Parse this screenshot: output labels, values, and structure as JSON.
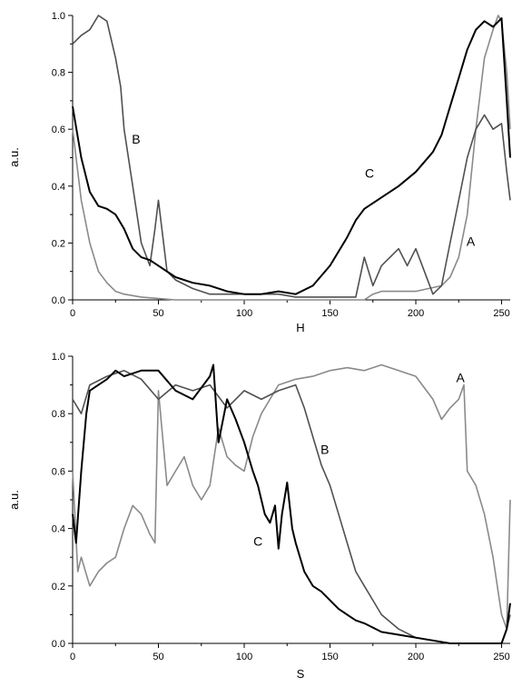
{
  "colors": {
    "A": "#8a8a8a",
    "B": "#505050",
    "C": "#000000",
    "axis": "#000000"
  },
  "chart_data": [
    {
      "type": "line",
      "xlabel": "H",
      "ylabel": "a.u.",
      "xlim": [
        0,
        255
      ],
      "ylim": [
        0,
        1.0
      ],
      "xticks": [
        0,
        50,
        100,
        150,
        200,
        250
      ],
      "yticks": [
        0.0,
        0.2,
        0.4,
        0.6,
        0.8,
        1.0
      ],
      "xtick_labels": [
        "0",
        "50",
        "100",
        "150",
        "200",
        "250"
      ],
      "ytick_labels": [
        "0.0",
        "0.2",
        "0.4",
        "0.6",
        "0.8",
        "1.0"
      ],
      "series": [
        {
          "name": "A",
          "x": [
            0,
            5,
            10,
            15,
            20,
            25,
            30,
            40,
            60,
            80,
            100,
            120,
            150,
            170,
            175,
            180,
            200,
            215,
            220,
            225,
            230,
            235,
            240,
            245,
            248,
            250,
            253,
            255
          ],
          "y": [
            0.6,
            0.35,
            0.2,
            0.1,
            0.06,
            0.03,
            0.02,
            0.01,
            0.0,
            0.0,
            0.0,
            0.0,
            0.0,
            0.0,
            0.02,
            0.03,
            0.03,
            0.05,
            0.08,
            0.15,
            0.3,
            0.6,
            0.85,
            0.95,
            1.0,
            0.98,
            0.8,
            0.6
          ]
        },
        {
          "name": "B",
          "x": [
            0,
            5,
            10,
            15,
            20,
            25,
            28,
            30,
            35,
            40,
            45,
            48,
            50,
            52,
            55,
            60,
            70,
            80,
            100,
            120,
            130,
            150,
            165,
            170,
            175,
            180,
            185,
            190,
            195,
            200,
            205,
            210,
            215,
            220,
            225,
            230,
            235,
            240,
            245,
            250,
            253,
            255
          ],
          "y": [
            0.9,
            0.93,
            0.95,
            1.0,
            0.98,
            0.85,
            0.75,
            0.6,
            0.4,
            0.2,
            0.12,
            0.25,
            0.35,
            0.25,
            0.1,
            0.07,
            0.04,
            0.02,
            0.02,
            0.02,
            0.01,
            0.01,
            0.01,
            0.15,
            0.05,
            0.12,
            0.15,
            0.18,
            0.12,
            0.18,
            0.1,
            0.02,
            0.05,
            0.2,
            0.35,
            0.5,
            0.6,
            0.65,
            0.6,
            0.62,
            0.45,
            0.35
          ]
        },
        {
          "name": "C",
          "x": [
            0,
            5,
            10,
            15,
            20,
            25,
            30,
            35,
            40,
            45,
            50,
            60,
            70,
            80,
            90,
            100,
            110,
            120,
            130,
            140,
            150,
            160,
            165,
            170,
            180,
            190,
            200,
            210,
            215,
            220,
            225,
            230,
            235,
            240,
            245,
            250,
            253,
            255
          ],
          "y": [
            0.68,
            0.5,
            0.38,
            0.33,
            0.32,
            0.3,
            0.25,
            0.18,
            0.15,
            0.14,
            0.12,
            0.08,
            0.06,
            0.05,
            0.03,
            0.02,
            0.02,
            0.03,
            0.02,
            0.05,
            0.12,
            0.22,
            0.28,
            0.32,
            0.36,
            0.4,
            0.45,
            0.52,
            0.58,
            0.68,
            0.78,
            0.88,
            0.95,
            0.98,
            0.96,
            0.99,
            0.7,
            0.5
          ]
        }
      ],
      "annotations": [
        {
          "text": "B",
          "x": 37,
          "y": 0.55
        },
        {
          "text": "C",
          "x": 173,
          "y": 0.43
        },
        {
          "text": "A",
          "x": 232,
          "y": 0.19
        }
      ]
    },
    {
      "type": "line",
      "xlabel": "S",
      "ylabel": "a.u.",
      "xlim": [
        0,
        255
      ],
      "ylim": [
        0,
        1.0
      ],
      "xticks": [
        0,
        50,
        100,
        150,
        200,
        250
      ],
      "yticks": [
        0.0,
        0.2,
        0.4,
        0.6,
        0.8,
        1.0
      ],
      "xtick_labels": [
        "0",
        "50",
        "100",
        "150",
        "200",
        "250"
      ],
      "ytick_labels": [
        "0.0",
        "0.2",
        "0.4",
        "0.6",
        "0.8",
        "1.0"
      ],
      "series": [
        {
          "name": "A",
          "x": [
            0,
            3,
            5,
            10,
            15,
            20,
            25,
            30,
            35,
            40,
            45,
            48,
            50,
            55,
            60,
            65,
            70,
            75,
            80,
            85,
            90,
            95,
            100,
            105,
            110,
            120,
            130,
            140,
            150,
            160,
            170,
            180,
            190,
            200,
            210,
            215,
            220,
            225,
            228,
            230,
            235,
            240,
            245,
            250,
            253,
            255
          ],
          "y": [
            0.6,
            0.25,
            0.3,
            0.2,
            0.25,
            0.28,
            0.3,
            0.4,
            0.48,
            0.45,
            0.38,
            0.35,
            0.88,
            0.55,
            0.6,
            0.65,
            0.55,
            0.5,
            0.55,
            0.75,
            0.65,
            0.62,
            0.6,
            0.72,
            0.8,
            0.9,
            0.92,
            0.93,
            0.95,
            0.96,
            0.95,
            0.97,
            0.95,
            0.93,
            0.85,
            0.78,
            0.82,
            0.85,
            0.9,
            0.6,
            0.55,
            0.45,
            0.3,
            0.1,
            0.05,
            0.5
          ]
        },
        {
          "name": "B",
          "x": [
            0,
            5,
            10,
            20,
            30,
            40,
            50,
            60,
            70,
            80,
            90,
            100,
            110,
            120,
            130,
            135,
            140,
            145,
            150,
            155,
            160,
            165,
            170,
            175,
            180,
            190,
            200,
            210,
            220,
            230,
            240,
            250,
            253,
            255
          ],
          "y": [
            0.85,
            0.8,
            0.9,
            0.93,
            0.95,
            0.92,
            0.85,
            0.9,
            0.88,
            0.9,
            0.82,
            0.88,
            0.85,
            0.88,
            0.9,
            0.82,
            0.72,
            0.62,
            0.55,
            0.45,
            0.35,
            0.25,
            0.2,
            0.15,
            0.1,
            0.05,
            0.02,
            0.01,
            0.0,
            0.0,
            0.0,
            0.0,
            0.05,
            0.1
          ]
        },
        {
          "name": "C",
          "x": [
            0,
            2,
            5,
            8,
            10,
            15,
            20,
            25,
            30,
            40,
            50,
            60,
            70,
            80,
            82,
            85,
            90,
            95,
            100,
            105,
            108,
            110,
            112,
            115,
            118,
            120,
            122,
            125,
            128,
            130,
            135,
            140,
            145,
            150,
            155,
            160,
            165,
            170,
            180,
            190,
            200,
            210,
            220,
            230,
            240,
            250,
            253,
            255
          ],
          "y": [
            0.45,
            0.35,
            0.6,
            0.8,
            0.88,
            0.9,
            0.92,
            0.95,
            0.93,
            0.95,
            0.95,
            0.88,
            0.85,
            0.93,
            0.97,
            0.7,
            0.85,
            0.78,
            0.7,
            0.6,
            0.55,
            0.5,
            0.45,
            0.42,
            0.48,
            0.33,
            0.45,
            0.56,
            0.4,
            0.35,
            0.25,
            0.2,
            0.18,
            0.15,
            0.12,
            0.1,
            0.08,
            0.07,
            0.04,
            0.03,
            0.02,
            0.01,
            0.0,
            0.0,
            0.0,
            0.0,
            0.05,
            0.14
          ]
        }
      ],
      "annotations": [
        {
          "text": "A",
          "x": 226,
          "y": 0.91
        },
        {
          "text": "B",
          "x": 147,
          "y": 0.66
        },
        {
          "text": "C",
          "x": 108,
          "y": 0.34
        }
      ]
    }
  ]
}
